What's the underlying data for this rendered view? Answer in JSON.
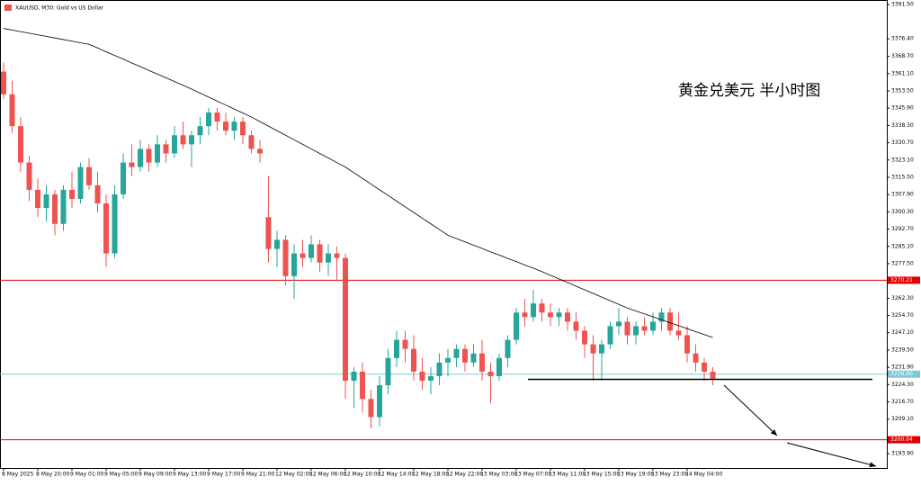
{
  "chart_data": {
    "type": "candlestick",
    "title": "XAUUSD, M30:  Gold vs US Dollar",
    "annotation": "黄金兑美元 半小时图",
    "up_color": "#26a69a",
    "down_color": "#ef5350",
    "categories": [
      "8 May 2025",
      null,
      null,
      null,
      "8 May 20:00",
      null,
      null,
      null,
      "9 May 01:00",
      null,
      null,
      null,
      "9 May 05:00",
      null,
      null,
      null,
      "9 May 09:00",
      null,
      null,
      null,
      "9 May 13:00",
      null,
      null,
      null,
      "9 May 17:00",
      null,
      null,
      null,
      "9 May 21:00",
      null,
      null,
      null,
      "12 May 02:00",
      null,
      null,
      null,
      "12 May 06:00",
      null,
      null,
      null,
      "12 May 10:00",
      null,
      null,
      null,
      "12 May 14:00",
      null,
      null,
      null,
      "12 May 18:00",
      null,
      null,
      null,
      "12 May 22:00",
      null,
      null,
      null,
      "13 May 03:00",
      null,
      null,
      null,
      "13 May 07:00",
      null,
      null,
      null,
      "13 May 11:00",
      null,
      null,
      null,
      "13 May 15:00",
      null,
      null,
      null,
      "13 May 19:00",
      null,
      null,
      null,
      "13 May 23:00",
      null,
      null,
      null,
      "14 May 04:00",
      null,
      null,
      null
    ],
    "open": [
      3362,
      3352,
      3338,
      3322,
      3310,
      3302,
      3308,
      3295,
      3310,
      3306,
      3320,
      3312,
      3304,
      3282,
      3308,
      3322,
      3320,
      3328,
      3322,
      3330,
      3326,
      3334,
      3330,
      3334,
      3338,
      3344,
      3340,
      3336,
      3340,
      3334,
      3328,
      3298,
      3284,
      3288,
      3272,
      3282,
      3280,
      3286,
      3278,
      3282,
      3280,
      3226,
      3230,
      3218,
      3210,
      3224,
      3236,
      3244,
      3240,
      3230,
      3226,
      3228,
      3234,
      3236,
      3240,
      3234,
      3238,
      3230,
      3228,
      3236,
      3244,
      3256,
      3254,
      3260,
      3256,
      3254,
      3256,
      3252,
      3248,
      3242,
      3238,
      3242,
      3250,
      3252,
      3246,
      3250,
      3248,
      3252,
      3256,
      3248,
      3246,
      3238,
      3234,
      3230
    ],
    "high": [
      3366,
      3358,
      3342,
      3325,
      3315,
      3312,
      3310,
      3312,
      3318,
      3322,
      3324,
      3318,
      3308,
      3312,
      3326,
      3330,
      3332,
      3330,
      3334,
      3332,
      3338,
      3340,
      3336,
      3342,
      3346,
      3346,
      3344,
      3342,
      3342,
      3336,
      3332,
      3316,
      3292,
      3290,
      3286,
      3288,
      3290,
      3288,
      3286,
      3285,
      3282,
      3232,
      3234,
      3222,
      3228,
      3240,
      3248,
      3248,
      3246,
      3236,
      3232,
      3238,
      3240,
      3242,
      3242,
      3242,
      3244,
      3234,
      3238,
      3246,
      3258,
      3262,
      3266,
      3262,
      3260,
      3258,
      3258,
      3256,
      3250,
      3246,
      3244,
      3252,
      3258,
      3254,
      3252,
      3254,
      3256,
      3258,
      3258,
      3256,
      3250,
      3242,
      3236,
      3232
    ],
    "low": [
      3350,
      3335,
      3318,
      3305,
      3298,
      3296,
      3290,
      3292,
      3302,
      3304,
      3310,
      3300,
      3276,
      3280,
      3306,
      3316,
      3318,
      3318,
      3320,
      3322,
      3324,
      3328,
      3320,
      3330,
      3334,
      3336,
      3334,
      3332,
      3330,
      3326,
      3322,
      3278,
      3276,
      3268,
      3262,
      3276,
      3278,
      3274,
      3272,
      3270,
      3218,
      3214,
      3212,
      3205,
      3206,
      3220,
      3232,
      3234,
      3226,
      3222,
      3220,
      3224,
      3228,
      3232,
      3230,
      3232,
      3226,
      3216,
      3226,
      3232,
      3242,
      3250,
      3252,
      3252,
      3250,
      3250,
      3248,
      3244,
      3236,
      3226,
      3226,
      3240,
      3246,
      3242,
      3242,
      3246,
      3246,
      3248,
      3246,
      3244,
      3234,
      3230,
      3226,
      3224
    ],
    "close": [
      3352,
      3338,
      3322,
      3310,
      3302,
      3308,
      3295,
      3310,
      3306,
      3320,
      3312,
      3304,
      3282,
      3308,
      3322,
      3320,
      3328,
      3322,
      3330,
      3326,
      3334,
      3330,
      3334,
      3338,
      3344,
      3340,
      3336,
      3340,
      3334,
      3328,
      3326,
      3284,
      3288,
      3272,
      3282,
      3280,
      3286,
      3278,
      3282,
      3280,
      3226,
      3230,
      3218,
      3210,
      3224,
      3236,
      3244,
      3240,
      3230,
      3226,
      3228,
      3234,
      3236,
      3240,
      3234,
      3238,
      3230,
      3228,
      3236,
      3244,
      3256,
      3254,
      3260,
      3256,
      3254,
      3256,
      3252,
      3248,
      3242,
      3238,
      3242,
      3250,
      3252,
      3246,
      3250,
      3248,
      3252,
      3256,
      3248,
      3246,
      3238,
      3234,
      3230,
      3227
    ],
    "ma": {
      "color": "#000000",
      "values": [
        3381,
        3380.3,
        3379.6,
        3378.9,
        3378.2,
        3377.5,
        3376.8,
        3376.1,
        3375.4,
        3374.7,
        3374,
        3372.4,
        3370.7,
        3369.1,
        3367.5,
        3365.8,
        3364.2,
        3362.5,
        3360.9,
        3359.3,
        3357.6,
        3356,
        3354.3,
        3352.5,
        3350.8,
        3349,
        3347.3,
        3345.5,
        3343.8,
        3342,
        3340,
        3338,
        3336,
        3334,
        3332,
        3330,
        3328,
        3326,
        3324,
        3322,
        3320,
        3317.5,
        3315,
        3312.5,
        3310,
        3307.5,
        3305,
        3302.5,
        3300,
        3297.5,
        3295,
        3292.5,
        3290,
        3288.5,
        3287.1,
        3285.6,
        3284.2,
        3282.7,
        3281.3,
        3279.8,
        3278.4,
        3276.9,
        3275.5,
        3274,
        3272.4,
        3270.8,
        3269.2,
        3267.6,
        3266,
        3264.4,
        3262.8,
        3261.2,
        3259.6,
        3258,
        3256.7,
        3255.4,
        3254.1,
        3252.8,
        3251.5,
        3250.2,
        3248.9,
        3247.6,
        3246.3,
        3245
      ]
    },
    "levels": [
      {
        "value": 3270.21,
        "color": "#e00000"
      },
      {
        "value": 3228.9,
        "label": "3228.90",
        "color": "#7fc8d8"
      },
      {
        "value": 3200.04,
        "color": "#e00000"
      }
    ],
    "ylim": [
      3187.6,
      3393.5
    ],
    "yticks": [
      {
        "value": 3391.5,
        "label": "3391.50"
      },
      {
        "value": 3376.4,
        "label": "3376.40"
      },
      {
        "value": 3368.7,
        "label": "3368.70"
      },
      {
        "value": 3361.1,
        "label": "3361.10"
      },
      {
        "value": 3353.5,
        "label": "3353.50"
      },
      {
        "value": 3345.9,
        "label": "3345.90"
      },
      {
        "value": 3338.3,
        "label": "3338.30"
      },
      {
        "value": 3330.7,
        "label": "3330.70"
      },
      {
        "value": 3323.1,
        "label": "3323.10"
      },
      {
        "value": 3315.5,
        "label": "3315.50"
      },
      {
        "value": 3307.9,
        "label": "3307.90"
      },
      {
        "value": 3300.3,
        "label": "3300.30"
      },
      {
        "value": 3292.7,
        "label": "3292.70"
      },
      {
        "value": 3285.1,
        "label": "3285.10"
      },
      {
        "value": 3277.5,
        "label": "3277.50"
      },
      {
        "value": 3262.3,
        "label": "3262.30"
      },
      {
        "value": 3254.7,
        "label": "3254.70"
      },
      {
        "value": 3247.1,
        "label": "3247.10"
      },
      {
        "value": 3239.5,
        "label": "3239.50"
      },
      {
        "value": 3231.9,
        "label": "3231.90"
      },
      {
        "value": 3224.3,
        "label": "3224.30"
      },
      {
        "value": 3216.7,
        "label": "3216.70"
      },
      {
        "value": 3209.1,
        "label": "3209.10"
      },
      {
        "value": 3193.9,
        "label": "3193.90"
      }
    ]
  }
}
